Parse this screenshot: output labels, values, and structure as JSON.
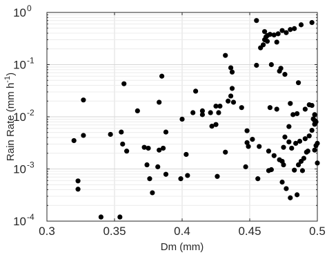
{
  "chart_data": {
    "type": "scatter",
    "xlabel": "Dm (mm)",
    "ylabel": {
      "main": "Rain Rate (mm h",
      "sup": "-1",
      "close": ")"
    },
    "xlim": [
      0.3,
      0.5
    ],
    "ylim": [
      0.0001,
      1
    ],
    "yscale": "log",
    "grid": true,
    "xticks": [
      {
        "value": 0.3,
        "label": "0.3"
      },
      {
        "value": 0.35,
        "label": "0.35"
      },
      {
        "value": 0.4,
        "label": "0.4"
      },
      {
        "value": 0.45,
        "label": "0.45"
      },
      {
        "value": 0.5,
        "label": "0.5"
      }
    ],
    "yticks": [
      {
        "value": 0.0001,
        "base": "10",
        "exp": "-4"
      },
      {
        "value": 0.001,
        "base": "10",
        "exp": "-3"
      },
      {
        "value": 0.01,
        "base": "10",
        "exp": "-2"
      },
      {
        "value": 0.1,
        "base": "10",
        "exp": "-1"
      },
      {
        "value": 1,
        "base": "10",
        "exp": "0"
      }
    ],
    "marker_color": "#000000",
    "series": [
      {
        "x": [
          0.455,
          0.458,
          0.46,
          0.461,
          0.462,
          0.463,
          0.465,
          0.468,
          0.471,
          0.474,
          0.477,
          0.48,
          0.483,
          0.488,
          0.496,
          0.461,
          0.463,
          0.47,
          0.432,
          0.436,
          0.437,
          0.455,
          0.466,
          0.472,
          0.473,
          0.476,
          0.486,
          0.385,
          0.357,
          0.327,
          0.41,
          0.437,
          0.436,
          0.434,
          0.425,
          0.438,
          0.383,
          0.367,
          0.427,
          0.421,
          0.428,
          0.408,
          0.444,
          0.4,
          0.415,
          0.415,
          0.388,
          0.375,
          0.32,
          0.327,
          0.347,
          0.355,
          0.356,
          0.359,
          0.383,
          0.372,
          0.386,
          0.403,
          0.432,
          0.448,
          0.452,
          0.448,
          0.449,
          0.425,
          0.422,
          0.457,
          0.464,
          0.475,
          0.474,
          0.472,
          0.476,
          0.374,
          0.382,
          0.376,
          0.399,
          0.404,
          0.388,
          0.323,
          0.323,
          0.34,
          0.354,
          0.378,
          0.426,
          0.447,
          0.456,
          0.464,
          0.474,
          0.466,
          0.468,
          0.475,
          0.479,
          0.481,
          0.484,
          0.487,
          0.489,
          0.49,
          0.493,
          0.491,
          0.494,
          0.496,
          0.497,
          0.498,
          0.498,
          0.499,
          0.5,
          0.485,
          0.48,
          0.477,
          0.488,
          0.492,
          0.479,
          0.482,
          0.485,
          0.47,
          0.465,
          0.48,
          0.491,
          0.494,
          0.496,
          0.498,
          0.483,
          0.486,
          0.498,
          0.5,
          0.499
        ],
        "y": [
          0.7,
          0.21,
          0.24,
          0.3,
          0.34,
          0.36,
          0.38,
          0.37,
          0.39,
          0.45,
          0.41,
          0.47,
          0.49,
          0.58,
          0.64,
          0.43,
          0.28,
          0.27,
          0.15,
          0.087,
          0.072,
          0.097,
          0.1,
          0.075,
          0.085,
          0.065,
          0.045,
          0.06,
          0.043,
          0.021,
          0.031,
          0.035,
          0.025,
          0.02,
          0.016,
          0.019,
          0.019,
          0.013,
          0.012,
          0.012,
          0.016,
          0.012,
          0.015,
          0.009,
          0.013,
          0.011,
          0.0051,
          0.0025,
          0.0035,
          0.0044,
          0.0046,
          0.0051,
          0.003,
          0.0022,
          0.0023,
          0.0026,
          0.0025,
          0.0019,
          0.0021,
          0.0054,
          0.0037,
          0.0032,
          0.0027,
          0.0071,
          0.0066,
          0.0027,
          0.0022,
          0.0012,
          0.0014,
          0.0015,
          0.0041,
          0.0012,
          0.0011,
          0.00065,
          0.00065,
          0.00075,
          0.00079,
          0.00059,
          0.00041,
          0.00012,
          0.00012,
          0.00035,
          0.00072,
          0.0011,
          0.00065,
          0.00093,
          0.00056,
          0.00097,
          0.0018,
          0.0026,
          0.0033,
          0.0025,
          0.0031,
          0.0034,
          0.00093,
          0.0016,
          0.0022,
          0.0038,
          0.0043,
          0.0055,
          0.0091,
          0.011,
          0.0072,
          0.008,
          0.0013,
          0.00032,
          0.00028,
          0.00042,
          0.0014,
          0.0021,
          0.0065,
          0.011,
          0.0115,
          0.014,
          0.015,
          0.018,
          0.014,
          0.017,
          0.0165,
          0.0085,
          0.00095,
          0.0012,
          0.0023,
          0.0031,
          0.0028
        ]
      }
    ]
  }
}
